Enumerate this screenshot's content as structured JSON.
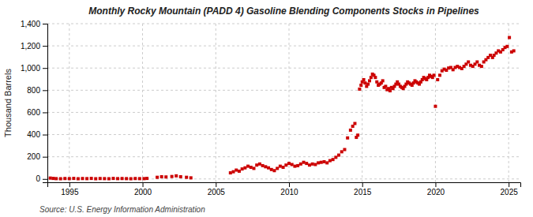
{
  "chart_data": {
    "type": "scatter",
    "title": "Monthly Rocky Mountain (PADD 4) Gasoline Blending Components Stocks in Pipelines",
    "ylabel": "Thousand Barrels",
    "annotations": [
      "Source: U.S. Energy Information Administration"
    ],
    "color": "#cc0000",
    "marker": "square",
    "grid": true,
    "xlim": [
      1993.5,
      2025.8
    ],
    "ylim": [
      -30,
      1400
    ],
    "xticks": [
      1995,
      2000,
      2005,
      2010,
      2015,
      2020,
      2025
    ],
    "yticks": [
      0,
      200,
      400,
      600,
      800,
      {
        "value": 1000,
        "label": "1,000"
      },
      {
        "value": 1200,
        "label": "1,200"
      },
      {
        "value": 1400,
        "label": "1,400"
      }
    ],
    "x": [
      1993.7,
      1993.9,
      1994.1,
      1994.4,
      1994.7,
      1995.0,
      1995.3,
      1995.6,
      1995.9,
      1996.2,
      1996.5,
      1996.8,
      1997.1,
      1997.4,
      1997.7,
      1998.0,
      1998.3,
      1998.6,
      1998.9,
      1999.2,
      1999.5,
      1999.8,
      2000.1,
      2000.3,
      2001.0,
      2001.3,
      2001.6,
      2002.0,
      2002.3,
      2002.6,
      2003.0,
      2003.3,
      2006.0,
      2006.2,
      2006.4,
      2006.6,
      2006.8,
      2007.0,
      2007.2,
      2007.4,
      2007.6,
      2007.8,
      2008.0,
      2008.2,
      2008.4,
      2008.6,
      2008.8,
      2009.0,
      2009.2,
      2009.4,
      2009.6,
      2009.8,
      2010.0,
      2010.2,
      2010.4,
      2010.6,
      2010.8,
      2011.0,
      2011.2,
      2011.4,
      2011.6,
      2011.8,
      2012.0,
      2012.2,
      2012.4,
      2012.6,
      2012.8,
      2013.0,
      2013.2,
      2013.4,
      2013.6,
      2013.8,
      2014.0,
      2014.2,
      2014.35,
      2014.5,
      2014.6,
      2014.7,
      2014.82,
      2014.92,
      2015.0,
      2015.1,
      2015.2,
      2015.3,
      2015.4,
      2015.5,
      2015.6,
      2015.7,
      2015.8,
      2015.9,
      2016.0,
      2016.1,
      2016.2,
      2016.3,
      2016.4,
      2016.5,
      2016.6,
      2016.7,
      2016.8,
      2016.9,
      2017.0,
      2017.1,
      2017.2,
      2017.3,
      2017.4,
      2017.5,
      2017.6,
      2017.7,
      2017.8,
      2017.9,
      2018.0,
      2018.1,
      2018.2,
      2018.3,
      2018.4,
      2018.5,
      2018.6,
      2018.7,
      2018.8,
      2018.9,
      2019.0,
      2019.1,
      2019.2,
      2019.3,
      2019.4,
      2019.5,
      2019.6,
      2019.7,
      2019.8,
      2019.9,
      2020.0,
      2020.15,
      2020.3,
      2020.45,
      2020.6,
      2020.75,
      2020.9,
      2021.05,
      2021.2,
      2021.35,
      2021.5,
      2021.65,
      2021.8,
      2021.95,
      2022.1,
      2022.25,
      2022.4,
      2022.55,
      2022.7,
      2022.85,
      2023.0,
      2023.15,
      2023.3,
      2023.45,
      2023.6,
      2023.75,
      2023.9,
      2024.0,
      2024.15,
      2024.3,
      2024.45,
      2024.6,
      2024.75,
      2024.9,
      2025.05,
      2025.2,
      2025.35
    ],
    "values": [
      8,
      5,
      3,
      2,
      4,
      3,
      5,
      2,
      4,
      3,
      5,
      2,
      4,
      3,
      2,
      5,
      3,
      4,
      3,
      2,
      4,
      3,
      3,
      5,
      15,
      20,
      18,
      22,
      28,
      20,
      15,
      10,
      55,
      65,
      80,
      70,
      90,
      100,
      115,
      105,
      95,
      125,
      135,
      120,
      110,
      100,
      85,
      75,
      95,
      115,
      105,
      125,
      140,
      130,
      115,
      120,
      135,
      150,
      140,
      125,
      135,
      130,
      145,
      150,
      155,
      145,
      165,
      175,
      195,
      215,
      245,
      265,
      370,
      440,
      475,
      500,
      375,
      395,
      810,
      845,
      875,
      895,
      865,
      835,
      855,
      885,
      915,
      945,
      935,
      915,
      875,
      845,
      855,
      865,
      885,
      825,
      835,
      805,
      815,
      795,
      825,
      815,
      835,
      855,
      875,
      855,
      835,
      825,
      815,
      835,
      855,
      875,
      865,
      855,
      845,
      865,
      885,
      875,
      865,
      855,
      875,
      895,
      915,
      905,
      895,
      915,
      935,
      925,
      915,
      935,
      655,
      895,
      935,
      975,
      990,
      980,
      1000,
      1005,
      985,
      1005,
      1015,
      1005,
      995,
      1015,
      1035,
      1055,
      1025,
      1015,
      1035,
      1055,
      1025,
      1015,
      1055,
      1075,
      1095,
      1115,
      1095,
      1115,
      1135,
      1155,
      1145,
      1165,
      1185,
      1195,
      1275,
      1145,
      1155
    ]
  }
}
